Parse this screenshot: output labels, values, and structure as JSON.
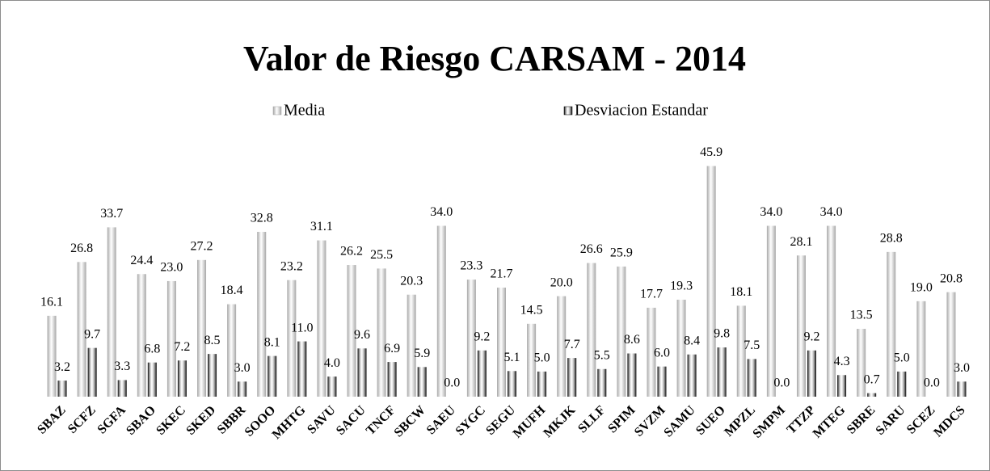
{
  "chart_data": {
    "type": "bar",
    "title": "Valor de Riesgo CARSAM - 2014",
    "categories": [
      "SBAZ",
      "SCFZ",
      "SGFA",
      "SBAO",
      "SKEC",
      "SKED",
      "SBBR",
      "SOOO",
      "MHTG",
      "SAVU",
      "SACU",
      "TNCF",
      "SBCW",
      "SAEU",
      "SYGC",
      "SEGU",
      "MUFH",
      "MKJK",
      "SLLF",
      "SPIM",
      "SVZM",
      "SAMU",
      "SUEO",
      "MPZL",
      "SMPM",
      "TTZP",
      "MTEG",
      "SBRE",
      "SARU",
      "SCEZ",
      "MDCS"
    ],
    "series": [
      {
        "name": "Media",
        "color": "#a6a6a6",
        "values": [
          16.1,
          26.8,
          33.7,
          24.4,
          23.0,
          27.2,
          18.4,
          32.8,
          23.2,
          31.1,
          26.2,
          25.5,
          20.3,
          34.0,
          23.3,
          21.7,
          14.5,
          20.0,
          26.6,
          25.9,
          17.7,
          19.3,
          45.9,
          18.1,
          34.0,
          28.1,
          34.0,
          13.5,
          28.8,
          19.0,
          20.8
        ],
        "value_labels": [
          "16.1",
          "26.8",
          "33.7",
          "24.4",
          "23.0",
          "27.2",
          "18.4",
          "32.8",
          "23.2",
          "31.1",
          "26.2",
          "25.5",
          "20.3",
          "34.0",
          "23.3",
          "21.7",
          "14.5",
          "20.0",
          "26.6",
          "25.9",
          "17.7",
          "19.3",
          "45.9",
          "18.1",
          "34.0",
          "28.1",
          "34.0",
          "13.5",
          "28.8",
          "19.0",
          "20.8"
        ]
      },
      {
        "name": "Desviacion Estandar",
        "color": "#000000",
        "values": [
          3.2,
          9.7,
          3.3,
          6.8,
          7.2,
          8.5,
          3.0,
          8.1,
          11.0,
          4.0,
          9.6,
          6.9,
          5.9,
          0.0,
          9.2,
          5.1,
          5.0,
          7.7,
          5.5,
          8.6,
          6.0,
          8.4,
          9.8,
          7.5,
          0.0,
          9.2,
          4.3,
          0.7,
          5.0,
          0.0,
          3.0
        ],
        "value_labels": [
          "3.2",
          "9.7",
          "3.3",
          "6.8",
          "7.2",
          "8.5",
          "3.0",
          "8.1",
          "11.0",
          "4.0",
          "9.6",
          "6.9",
          "5.9",
          "0.0",
          "9.2",
          "5.1",
          "5.0",
          "7.7",
          "5.5",
          "8.6",
          "6.0",
          "8.4",
          "9.8",
          "7.5",
          "0.0",
          "9.2",
          "4.3",
          "0.7",
          "5.0",
          "0.0",
          "3.0"
        ]
      }
    ],
    "ylim": [
      0,
      50
    ],
    "legend": "top"
  }
}
